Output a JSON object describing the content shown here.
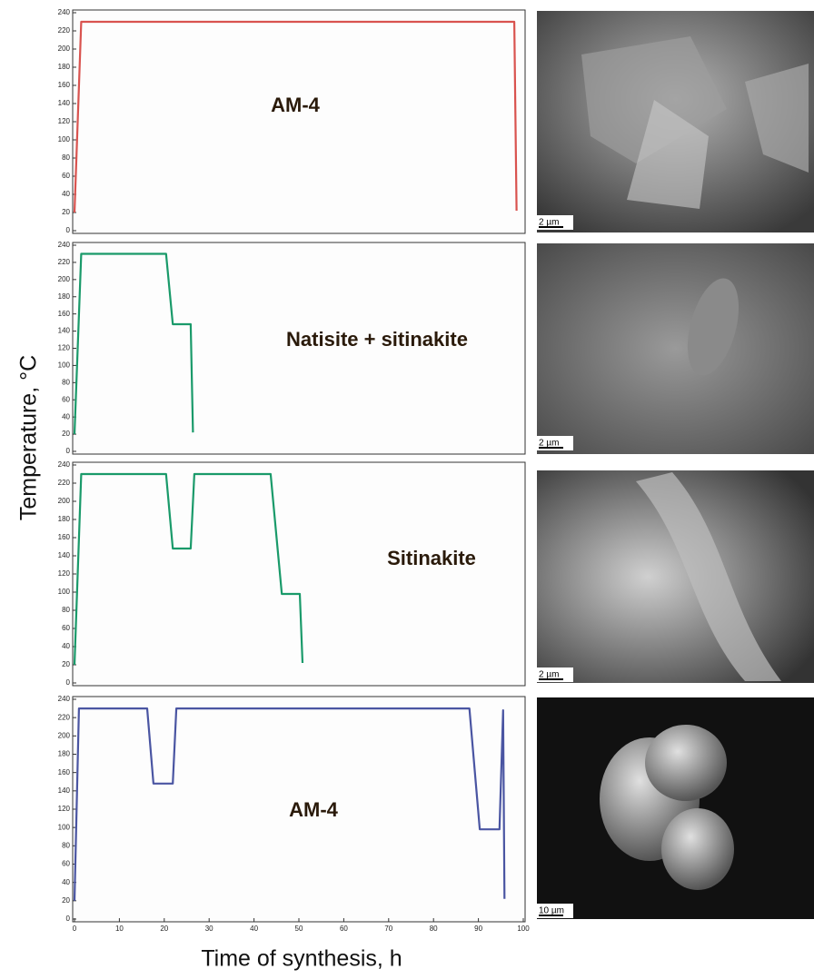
{
  "ylabel": "Temperature, °C",
  "xlabel": "Time of synthesis, h",
  "chart_data": [
    {
      "type": "line",
      "annotation": "AM-4",
      "color": "#d9534f",
      "x": [
        0,
        1.5,
        98,
        98.5
      ],
      "values": [
        20,
        230,
        230,
        22
      ],
      "xlim": [
        0,
        100
      ],
      "ylim": [
        0,
        240
      ],
      "yticks": [
        0,
        20,
        40,
        60,
        80,
        100,
        120,
        140,
        160,
        180,
        200,
        220,
        240
      ]
    },
    {
      "type": "line",
      "annotation": "Natisite + sitinakite",
      "color": "#1a9a6a",
      "x": [
        0,
        1.5,
        20.4,
        21.9,
        25.9,
        26.4
      ],
      "values": [
        20,
        230,
        230,
        148,
        148,
        22
      ],
      "xlim": [
        0,
        100
      ],
      "ylim": [
        0,
        240
      ],
      "yticks": [
        0,
        20,
        40,
        60,
        80,
        100,
        120,
        140,
        160,
        180,
        200,
        220,
        240
      ]
    },
    {
      "type": "line",
      "annotation": "Sitinakite",
      "color": "#1a9a6a",
      "x": [
        0,
        1.5,
        20.4,
        21.9,
        25.9,
        26.7,
        43.7,
        46.2,
        50.2,
        50.8
      ],
      "values": [
        20,
        230,
        230,
        148,
        148,
        230,
        230,
        98,
        98,
        22
      ],
      "xlim": [
        0,
        100
      ],
      "ylim": [
        0,
        240
      ],
      "yticks": [
        0,
        20,
        40,
        60,
        80,
        100,
        120,
        140,
        160,
        180,
        200,
        220,
        240
      ]
    },
    {
      "type": "line",
      "annotation": "AM-4",
      "color": "#4a55a2",
      "x": [
        0,
        1,
        16.2,
        17.6,
        21.9,
        22.7,
        88,
        90.3,
        94.7,
        95.5,
        95.8
      ],
      "values": [
        20,
        230,
        230,
        148,
        148,
        230,
        230,
        98,
        98,
        228,
        22
      ],
      "xlim": [
        0,
        100
      ],
      "ylim": [
        0,
        240
      ],
      "yticks": [
        0,
        20,
        40,
        60,
        80,
        100,
        120,
        140,
        160,
        180,
        200,
        220,
        240
      ],
      "xticks": [
        0,
        10,
        20,
        30,
        40,
        50,
        60,
        70,
        80,
        90,
        100
      ]
    }
  ],
  "micrographs": [
    {
      "scale_bar": "2 µm"
    },
    {
      "scale_bar": "2 µm"
    },
    {
      "scale_bar": "2 µm"
    },
    {
      "scale_bar": "10 µm"
    }
  ]
}
